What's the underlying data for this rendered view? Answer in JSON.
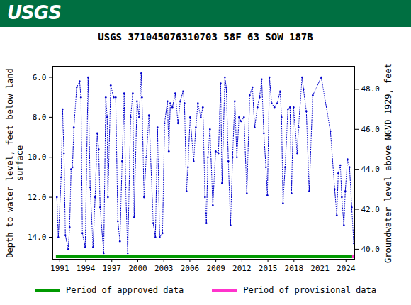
{
  "chart_data": {
    "type": "line",
    "banner": "USGS",
    "title": "USGS 371045076310703 58F 63 SOW 187B",
    "ylabel": [
      "Depth to water level, feet below land",
      "surface"
    ],
    "y2label": "Groundwater level above NGVD 1929, feet",
    "color": "#0000cc",
    "marker": "dot",
    "line_style": "dotted",
    "grid": false,
    "x": [
      1990.67,
      1990.84,
      1991.16,
      1991.33,
      1991.49,
      1991.65,
      1991.98,
      1992.14,
      1992.31,
      1992.47,
      1992.63,
      1992.96,
      1993.29,
      1993.45,
      1993.61,
      1993.94,
      1994.27,
      1994.51,
      1994.84,
      1995.08,
      1995.33,
      1995.49,
      1995.66,
      1996.07,
      1996.31,
      1996.47,
      1996.56,
      1996.88,
      1997.21,
      1997.45,
      1997.7,
      1997.94,
      1998.19,
      1998.43,
      1998.6,
      1998.84,
      1999.17,
      1999.42,
      1999.58,
      1999.91,
      2000.15,
      2000.4,
      2000.48,
      2000.72,
      2000.97,
      2001.29,
      2001.78,
      2002.03,
      2002.27,
      2002.52,
      2002.85,
      2003.09,
      2003.42,
      2003.58,
      2003.75,
      2003.99,
      2004.32,
      2004.64,
      2004.89,
      2005.22,
      2005.38,
      2005.62,
      2005.79,
      2006.03,
      2006.44,
      2006.69,
      2006.93,
      2007.26,
      2007.5,
      2007.75,
      2007.91,
      2008.08,
      2008.32,
      2008.65,
      2008.97,
      2009.3,
      2009.55,
      2009.71,
      2010.04,
      2010.2,
      2010.44,
      2010.69,
      2010.93,
      2011.18,
      2011.42,
      2011.67,
      2011.92,
      2012.24,
      2012.57,
      2012.9,
      2013.22,
      2013.47,
      2013.79,
      2014.04,
      2014.28,
      2014.53,
      2014.77,
      2014.94,
      2015.18,
      2015.43,
      2015.75,
      2016.08,
      2016.41,
      2016.57,
      2016.74,
      2016.98,
      2017.31,
      2017.55,
      2017.72,
      2017.96,
      2018.37,
      2018.53,
      2018.94,
      2019.1,
      2019.43,
      2019.76,
      2020.17,
      2021.15,
      2022.21,
      2022.7,
      2022.94,
      2023.11,
      2023.35,
      2023.52,
      2023.76,
      2023.92,
      2024.17,
      2024.41,
      2024.66,
      2024.9
    ],
    "values": [
      12.0,
      14.0,
      11.0,
      7.6,
      9.8,
      13.9,
      14.6,
      13.5,
      10.6,
      10.5,
      8.5,
      6.5,
      6.2,
      7.0,
      13.8,
      14.5,
      6.0,
      11.5,
      14.5,
      12.0,
      8.8,
      9.6,
      12.5,
      14.8,
      7.0,
      8.0,
      12.0,
      6.4,
      7.0,
      7.0,
      13.2,
      14.2,
      10.2,
      6.8,
      11.5,
      14.8,
      8.0,
      6.8,
      13.0,
      7.2,
      8.0,
      5.8,
      7.0,
      12.0,
      10.0,
      7.9,
      13.3,
      14.0,
      8.5,
      14.0,
      13.8,
      8.3,
      7.2,
      9.7,
      7.3,
      7.5,
      6.8,
      8.3,
      7.2,
      6.7,
      7.3,
      11.7,
      10.5,
      8.0,
      10.2,
      8.5,
      7.3,
      8.0,
      7.5,
      12.0,
      13.3,
      10.0,
      8.6,
      12.4,
      9.7,
      9.8,
      6.3,
      11.3,
      6.0,
      6.5,
      10.2,
      13.4,
      10.0,
      7.2,
      10.0,
      8.0,
      8.2,
      8.0,
      11.8,
      6.9,
      6.5,
      8.5,
      7.5,
      7.0,
      6.1,
      8.8,
      10.5,
      11.9,
      6.0,
      7.3,
      7.5,
      7.3,
      6.7,
      8.0,
      12.3,
      10.5,
      7.6,
      7.5,
      11.8,
      7.5,
      9.8,
      8.5,
      6.0,
      6.6,
      7.7,
      11.7,
      6.9,
      6.0,
      8.7,
      11.6,
      12.9,
      10.8,
      10.4,
      12.0,
      13.4,
      11.7,
      10.1,
      10.5,
      12.5,
      14.3
    ],
    "xlim": [
      1990.2,
      2025.0
    ],
    "xticks": [
      1991,
      1994,
      1997,
      2000,
      2003,
      2006,
      2009,
      2012,
      2015,
      2018,
      2021,
      2024
    ],
    "ylim": [
      15.1,
      5.45
    ],
    "yticks": [
      {
        "value": 6,
        "label": "6.0"
      },
      {
        "value": 8,
        "label": "8.0"
      },
      {
        "value": 10,
        "label": "10.0"
      },
      {
        "value": 12,
        "label": "12.0"
      },
      {
        "value": 14,
        "label": "14.0"
      }
    ],
    "y2lim": [
      39.5,
      49.15
    ],
    "y2ticks": [
      {
        "value": 40,
        "label": "40.0"
      },
      {
        "value": 42,
        "label": "42.0"
      },
      {
        "value": 44,
        "label": "44.0"
      },
      {
        "value": 46,
        "label": "46.0"
      },
      {
        "value": 48,
        "label": "48.0"
      }
    ],
    "periods": [
      {
        "name": "Period of approved data",
        "color": "#009900",
        "range": [
          1990.6,
          2024.75
        ]
      },
      {
        "name": "Period of provisional data",
        "color": "#ff33cc",
        "range": [
          2024.75,
          2025.0
        ]
      }
    ]
  }
}
